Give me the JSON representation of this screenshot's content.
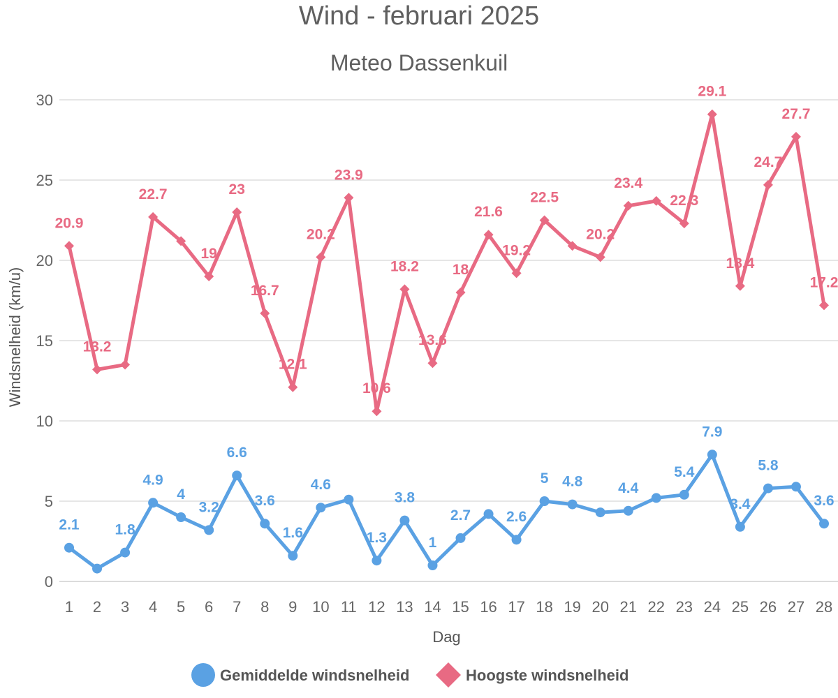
{
  "chart_data": {
    "type": "line",
    "title": "Wind - februari 2025",
    "subtitle": "Meteo Dassenkuil",
    "xlabel": "Dag",
    "ylabel": "Windsnelheid (km/u)",
    "ylim": [
      0,
      30
    ],
    "yticks": [
      "0",
      "5",
      "10",
      "15",
      "20",
      "25",
      "30"
    ],
    "categories": [
      "1",
      "2",
      "3",
      "4",
      "5",
      "6",
      "7",
      "8",
      "9",
      "10",
      "11",
      "12",
      "13",
      "14",
      "15",
      "16",
      "17",
      "18",
      "19",
      "20",
      "21",
      "22",
      "23",
      "24",
      "25",
      "26",
      "27",
      "28"
    ],
    "grid": true,
    "legend_position": "bottom",
    "series": [
      {
        "name": "Gemiddelde windsnelheid",
        "color": "#5aa1e3",
        "marker": "circle",
        "values": [
          2.1,
          0.8,
          1.8,
          4.9,
          4,
          3.2,
          6.6,
          3.6,
          1.6,
          4.6,
          5.1,
          1.3,
          3.8,
          1,
          2.7,
          4.2,
          2.6,
          5,
          4.8,
          4.3,
          4.4,
          5.2,
          5.4,
          7.9,
          3.4,
          5.8,
          5.9,
          3.6
        ],
        "labels": [
          "2.1",
          "",
          "1.8",
          "4.9",
          "4",
          "3.2",
          "6.6",
          "3.6",
          "1.6",
          "4.6",
          "",
          "1.3",
          "3.8",
          "1",
          "2.7",
          "",
          "2.6",
          "5",
          "4.8",
          "",
          "4.4",
          "",
          "5.4",
          "7.9",
          "3.4",
          "5.8",
          "",
          "3.6"
        ]
      },
      {
        "name": "Hoogste windsnelheid",
        "color": "#e86a83",
        "marker": "diamond",
        "values": [
          20.9,
          13.2,
          13.5,
          22.7,
          21.2,
          19,
          23,
          16.7,
          12.1,
          20.2,
          23.9,
          10.6,
          18.2,
          13.6,
          18,
          21.6,
          19.2,
          22.5,
          20.9,
          20.2,
          23.4,
          23.7,
          22.3,
          29.1,
          18.4,
          24.7,
          27.7,
          17.2
        ],
        "labels": [
          "20.9",
          "13.2",
          "",
          "22.7",
          "",
          "19",
          "23",
          "16.7",
          "12.1",
          "20.2",
          "23.9",
          "10.6",
          "18.2",
          "13.6",
          "18",
          "21.6",
          "19.2",
          "22.5",
          "",
          "20.2",
          "23.4",
          "",
          "22.3",
          "29.1",
          "18.4",
          "24.7",
          "27.7",
          "17.2"
        ]
      }
    ]
  }
}
